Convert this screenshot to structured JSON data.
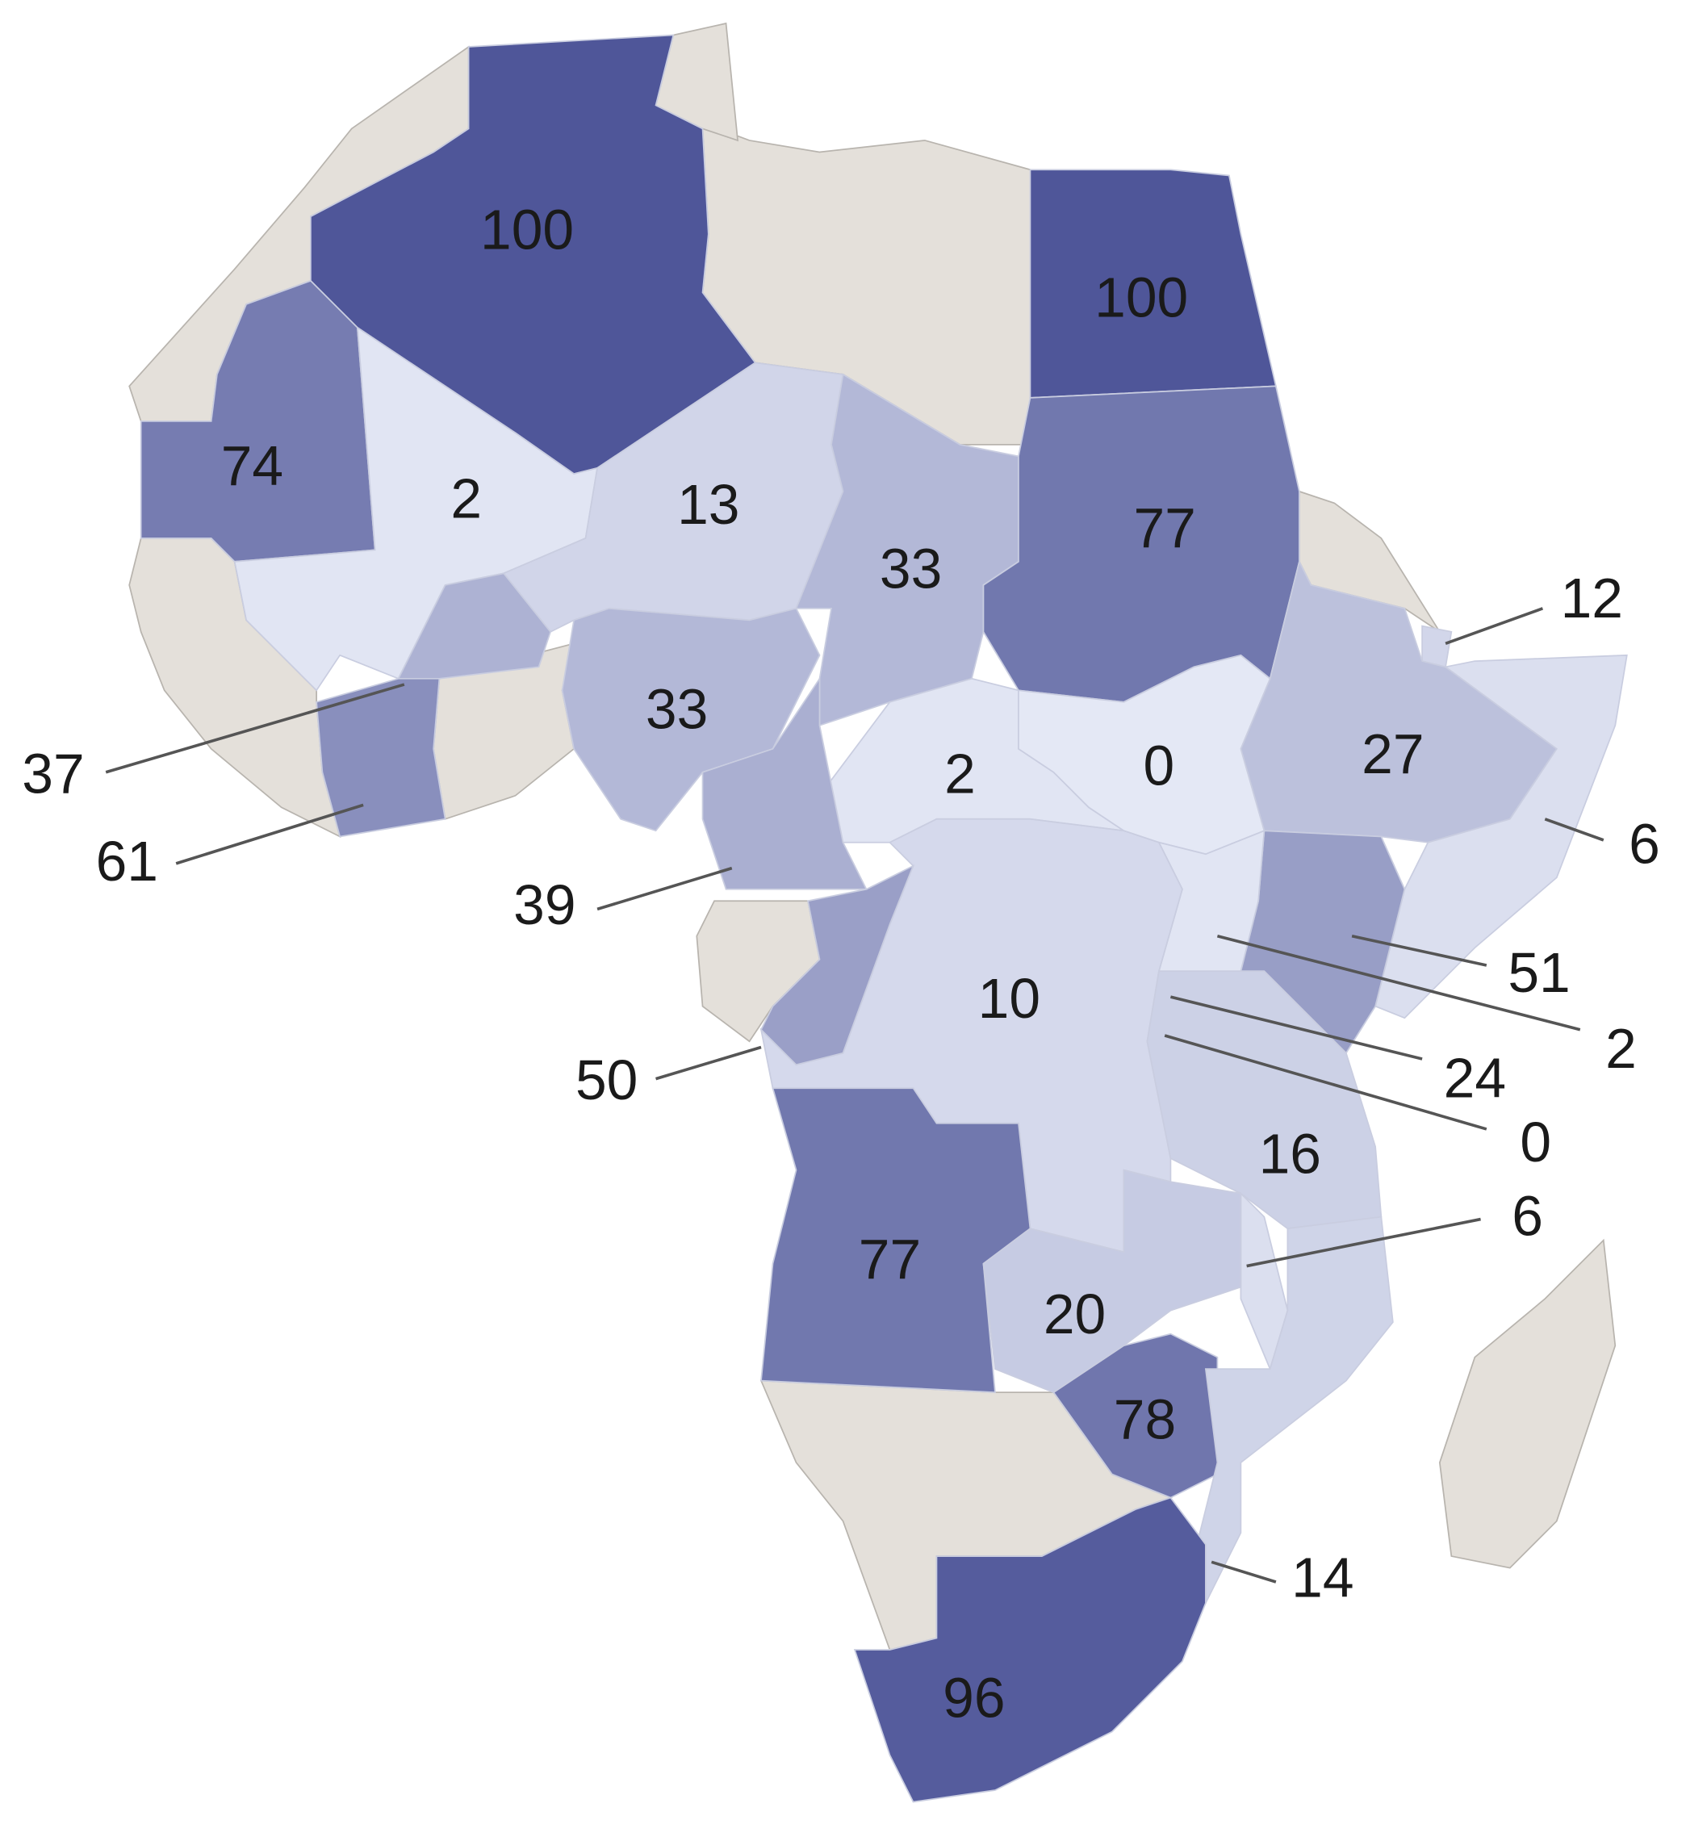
{
  "color_scale": {
    "low": "#e4e8f5",
    "high": "#4f5699"
  },
  "regions": [
    {
      "value": 100
    },
    {
      "value": 100
    },
    {
      "value": 74
    },
    {
      "value": 2
    },
    {
      "value": 13
    },
    {
      "value": 33
    },
    {
      "value": 77
    },
    {
      "value": 12
    },
    {
      "value": 27
    },
    {
      "value": 6
    },
    {
      "value": 37
    },
    {
      "value": 61
    },
    {
      "value": 33
    },
    {
      "value": 2
    },
    {
      "value": 0
    },
    {
      "value": 39
    },
    {
      "value": 51
    },
    {
      "value": 2
    },
    {
      "value": 24
    },
    {
      "value": 0
    },
    {
      "value": 10
    },
    {
      "value": 50
    },
    {
      "value": 16
    },
    {
      "value": 6
    },
    {
      "value": 77
    },
    {
      "value": 20
    },
    {
      "value": 78
    },
    {
      "value": 14
    },
    {
      "value": 96
    }
  ]
}
